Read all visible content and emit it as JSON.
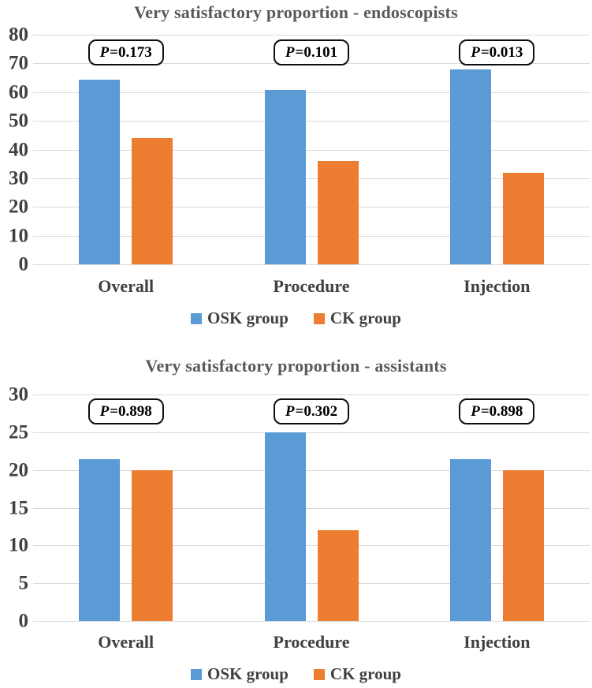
{
  "colors": {
    "osk_blue": "#5B9BD5",
    "ck_orange": "#ED7D31",
    "gridline": "#D9D9D9",
    "tick_text": "#404040",
    "title_text": "#595959",
    "pbox_border": "#0D0D0D"
  },
  "chart_data": [
    {
      "type": "bar",
      "title": "Very satisfactory proportion - endoscopists",
      "categories": [
        "Overall",
        "Procedure",
        "Injection"
      ],
      "series": [
        {
          "name": "OSK group",
          "color": "#5B9BD5",
          "values": [
            64.3,
            60.7,
            67.9
          ]
        },
        {
          "name": "CK group",
          "color": "#ED7D31",
          "values": [
            44,
            36,
            32
          ]
        }
      ],
      "p_labels": [
        "P=0.173",
        "P=0.101",
        "P=0.013"
      ],
      "xlabel": "",
      "ylabel": "",
      "ylim": [
        0,
        80
      ],
      "yticks": [
        0,
        10,
        20,
        30,
        40,
        50,
        60,
        70,
        80
      ],
      "grid": true,
      "legend_position": "bottom"
    },
    {
      "type": "bar",
      "title": "Very satisfactory proportion - assistants",
      "categories": [
        "Overall",
        "Procedure",
        "Injection"
      ],
      "series": [
        {
          "name": "OSK group",
          "color": "#5B9BD5",
          "values": [
            21.4,
            25,
            21.4
          ]
        },
        {
          "name": "CK group",
          "color": "#ED7D31",
          "values": [
            20,
            12,
            20
          ]
        }
      ],
      "p_labels": [
        "P=0.898",
        "P=0.302",
        "P=0.898"
      ],
      "xlabel": "",
      "ylabel": "",
      "ylim": [
        0,
        30
      ],
      "yticks": [
        0,
        5,
        10,
        15,
        20,
        25,
        30
      ],
      "grid": true,
      "legend_position": "bottom"
    }
  ]
}
